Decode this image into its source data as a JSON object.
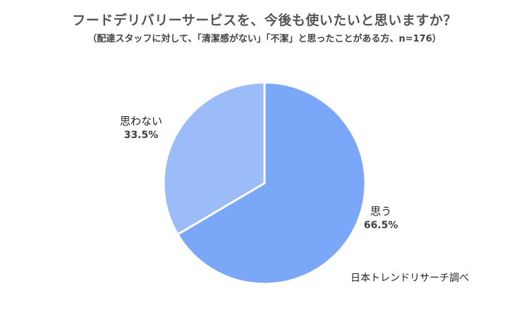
{
  "chart_data": {
    "type": "pie",
    "title": "フードデリバリーサービスを、今後も使いたいと思いますか？",
    "subtitle": "（配達スタッフに対して、「清潔感がない」「不潔」と思ったことがある方、n=176）",
    "slices": [
      {
        "label": "思う",
        "value": 66.5,
        "display": "66.5%",
        "color": "#7aa7f7"
      },
      {
        "label": "思わない",
        "value": 33.5,
        "display": "33.5%",
        "color": "#9bbcf8"
      }
    ],
    "source": "日本トレンドリサーチ調べ"
  }
}
